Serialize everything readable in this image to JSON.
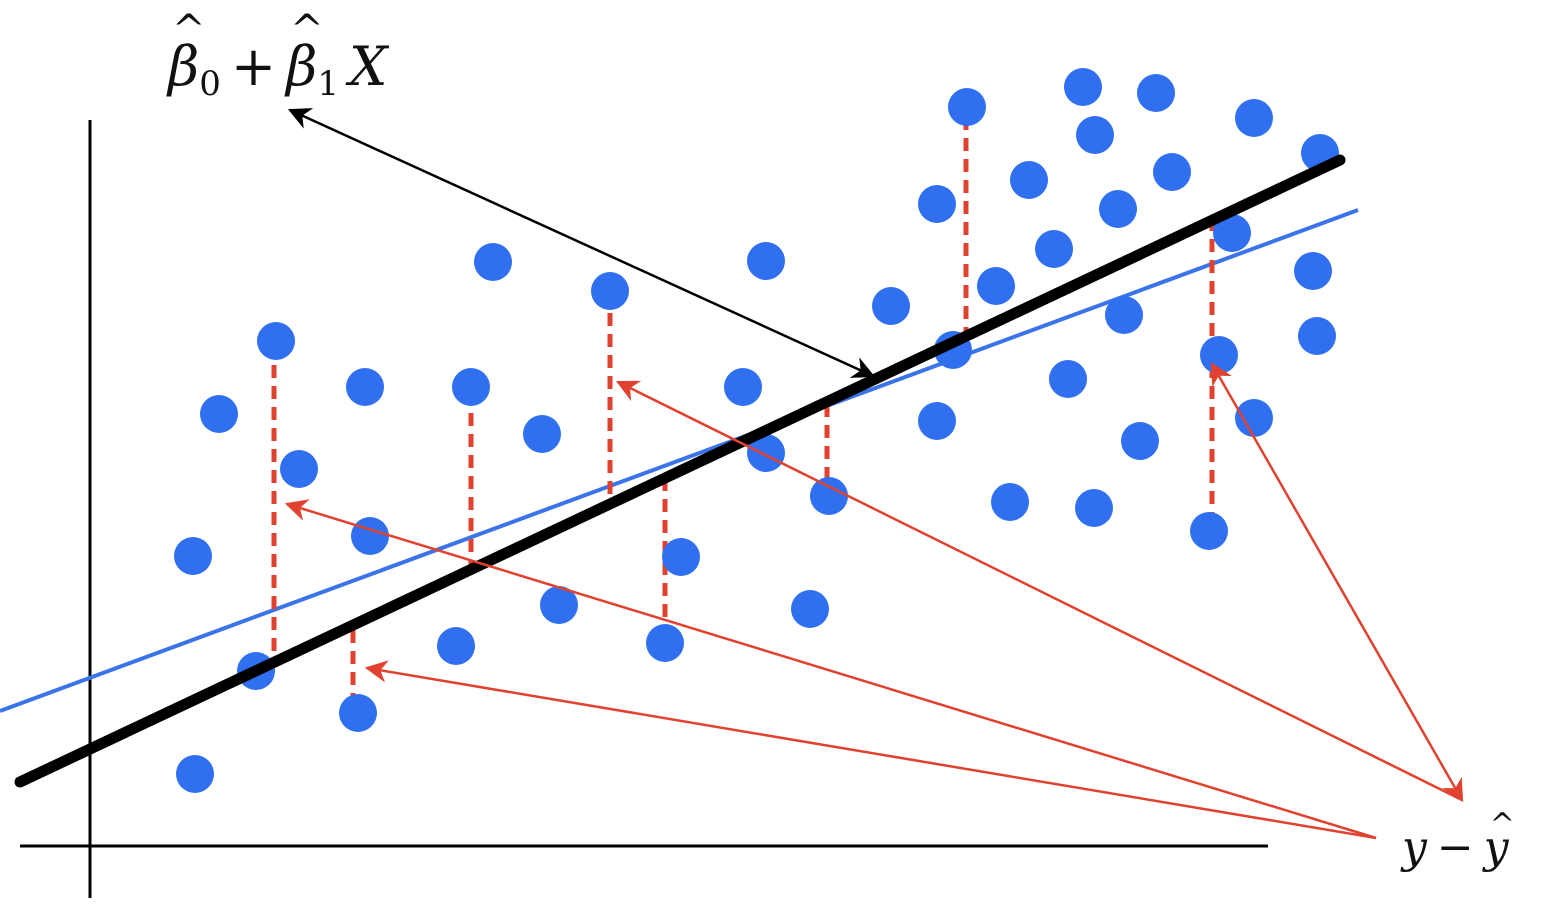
{
  "labels": {
    "fit_beta0": "β",
    "fit_sub0": "0",
    "fit_plus": "+",
    "fit_beta1": "β",
    "fit_sub1": "1",
    "fit_x": "X",
    "res_y": "y",
    "res_minus": "−",
    "res_yhat": "y"
  },
  "colors": {
    "points": "#2f6ff0",
    "regression_line": "#000000",
    "true_line": "#3a74e8",
    "residual": "#e0422f",
    "arrow_black": "#000000",
    "arrow_red": "#e0422f",
    "axes": "#000000"
  }
}
